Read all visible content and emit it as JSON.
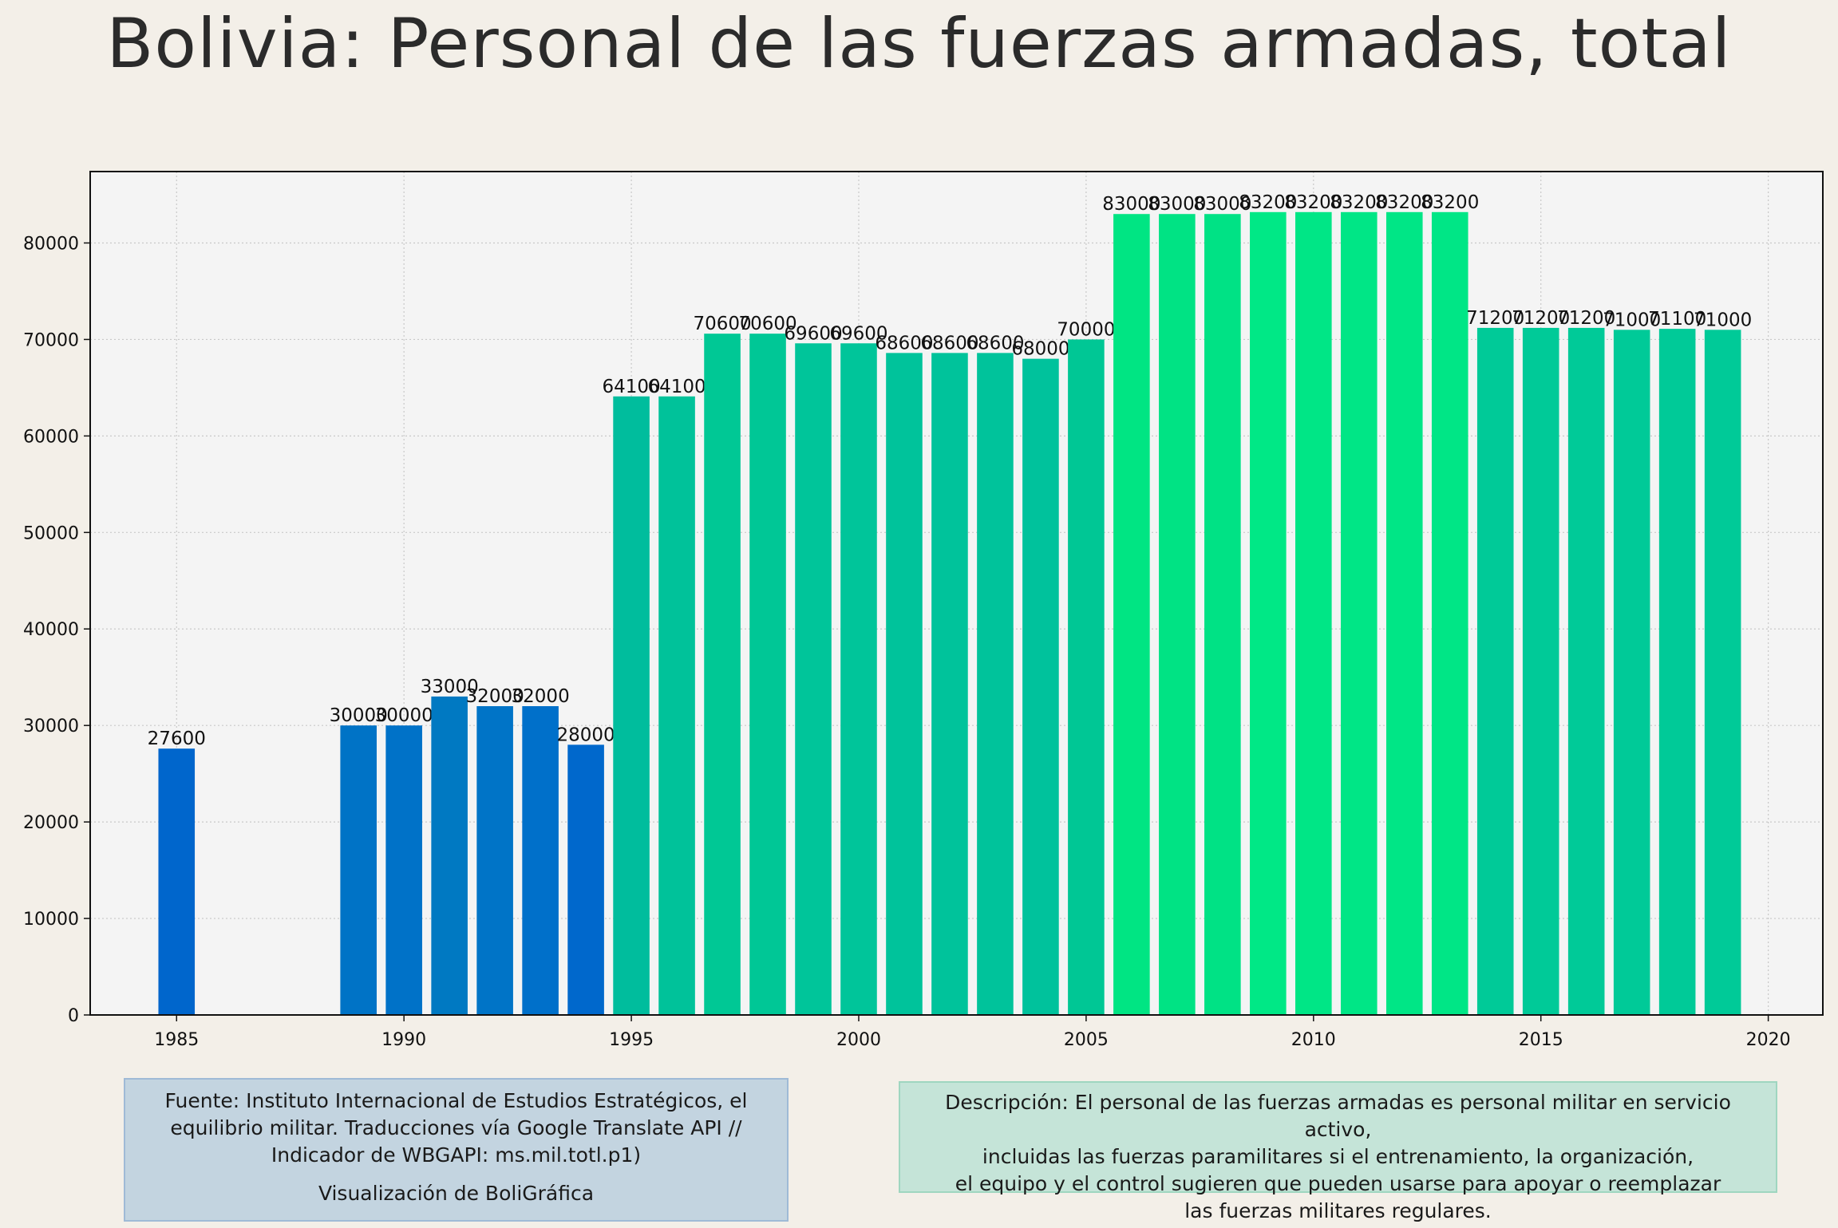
{
  "title": "Bolivia:  Personal de las fuerzas armadas, total",
  "chart_data": {
    "type": "bar",
    "title": "Bolivia:  Personal de las fuerzas armadas, total",
    "xlabel": "",
    "ylabel": "",
    "x": [
      1985,
      1989,
      1990,
      1991,
      1992,
      1993,
      1994,
      1995,
      1996,
      1997,
      1998,
      1999,
      2000,
      2001,
      2002,
      2003,
      2004,
      2005,
      2006,
      2007,
      2008,
      2009,
      2010,
      2011,
      2012,
      2013,
      2014,
      2015,
      2016,
      2017,
      2018,
      2019
    ],
    "values": [
      27600,
      30000,
      30000,
      33000,
      32000,
      32000,
      28000,
      64100,
      64100,
      70600,
      70600,
      69600,
      69600,
      68600,
      68600,
      68600,
      68000,
      70000,
      83000,
      83000,
      83000,
      83200,
      83200,
      83200,
      83200,
      83200,
      71200,
      71200,
      71200,
      71000,
      71100,
      71000
    ],
    "colors": [
      "#0066cc",
      "#0073c6",
      "#0072c8",
      "#0079c2",
      "#0074c7",
      "#0070ca",
      "#0068cc",
      "#00bd9d",
      "#00c29a",
      "#00c895",
      "#00c796",
      "#00c59a",
      "#00c59a",
      "#00c39b",
      "#00c39b",
      "#00c39b",
      "#00c29c",
      "#00c795",
      "#00e583",
      "#00e384",
      "#00e285",
      "#00e886",
      "#00e686",
      "#00e686",
      "#00e686",
      "#00e686",
      "#00ca98",
      "#00ca98",
      "#00ca98",
      "#00ca98",
      "#00ca98",
      "#00ca98"
    ],
    "xlim": [
      1983.1,
      2021.2
    ],
    "ylim": [
      0,
      87400
    ],
    "xticks": [
      1985,
      1990,
      1995,
      2000,
      2005,
      2010,
      2015,
      2020
    ],
    "yticks": [
      0,
      10000,
      20000,
      30000,
      40000,
      50000,
      60000,
      70000,
      80000
    ],
    "grid": true,
    "plot_background": "#f4f4f4",
    "page_background": "#f3efe8"
  },
  "source_box": {
    "line1": "Fuente: Instituto Internacional de Estudios Estratégicos, el",
    "line2": "equilibrio militar. Traducciones vía Google Translate API //",
    "line3": "Indicador de WBGAPI: ms.mil.totl.p1)",
    "credit": "Visualización de BoliGráfica"
  },
  "description_box": {
    "line1": "Descripción: El personal de las fuerzas armadas es personal militar en servicio activo,",
    "line2": "incluidas las fuerzas paramilitares si el entrenamiento, la organización,",
    "line3": "el equipo y el control sugieren que pueden usarse para apoyar o reemplazar",
    "line4": "las fuerzas militares regulares."
  }
}
